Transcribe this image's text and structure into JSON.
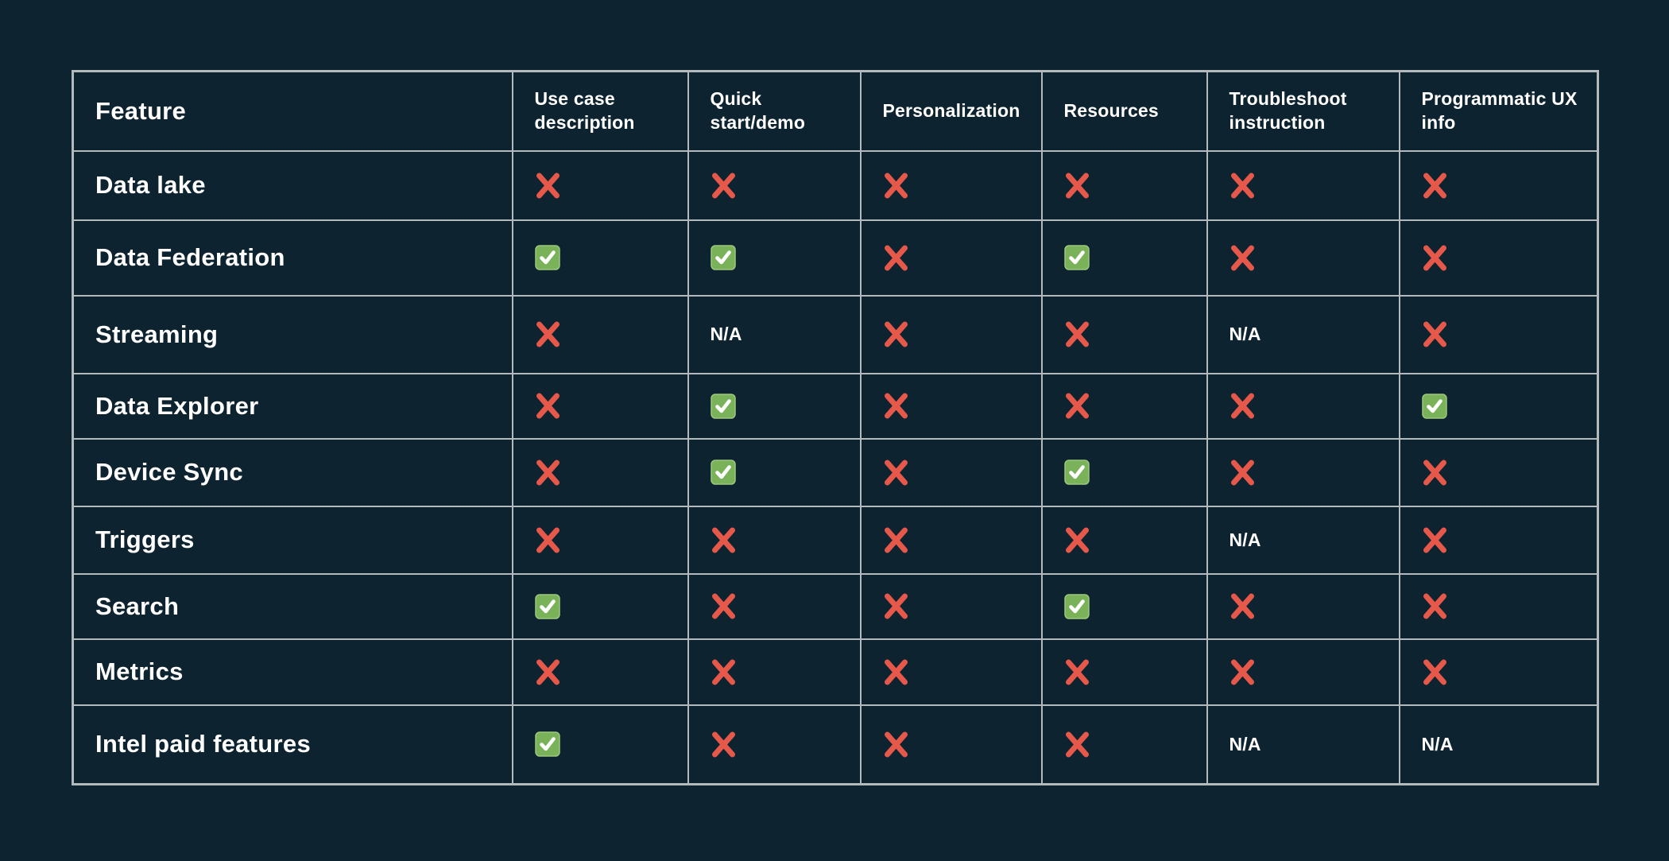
{
  "colors": {
    "background": "#0d2330",
    "table_grid": "#b3babe",
    "text": "#ffffff",
    "cross_red": "#e5584a",
    "check_green": "#79b259",
    "check_green_edge": "#9cc87e",
    "check_mark_white": "#ffffff"
  },
  "chart_data": {
    "type": "table",
    "columns": [
      "Feature",
      "Use case description",
      "Quick start/demo",
      "Personalization",
      "Resources",
      "Troubleshoot instruction",
      "Programmatic UX info"
    ],
    "rows": [
      {
        "feature": "Data lake",
        "values": [
          "cross",
          "cross",
          "cross",
          "cross",
          "cross",
          "cross"
        ]
      },
      {
        "feature": "Data Federation",
        "values": [
          "check",
          "check",
          "cross",
          "check",
          "cross",
          "cross"
        ]
      },
      {
        "feature": "Streaming",
        "values": [
          "cross",
          "na",
          "cross",
          "cross",
          "na",
          "cross"
        ]
      },
      {
        "feature": "Data Explorer",
        "values": [
          "cross",
          "check",
          "cross",
          "cross",
          "cross",
          "check"
        ]
      },
      {
        "feature": "Device Sync",
        "values": [
          "cross",
          "check",
          "cross",
          "check",
          "cross",
          "cross"
        ]
      },
      {
        "feature": "Triggers",
        "values": [
          "cross",
          "cross",
          "cross",
          "cross",
          "na",
          "cross"
        ]
      },
      {
        "feature": "Search",
        "values": [
          "check",
          "cross",
          "cross",
          "check",
          "cross",
          "cross"
        ]
      },
      {
        "feature": "Metrics",
        "values": [
          "cross",
          "cross",
          "cross",
          "cross",
          "cross",
          "cross"
        ]
      },
      {
        "feature": "Intel paid features",
        "values": [
          "check",
          "cross",
          "cross",
          "cross",
          "na",
          "na"
        ]
      }
    ],
    "na_label": "N/A",
    "icon_legend": {
      "check": "check-icon",
      "cross": "cross-icon"
    },
    "grid": true,
    "legend_position": "none"
  }
}
